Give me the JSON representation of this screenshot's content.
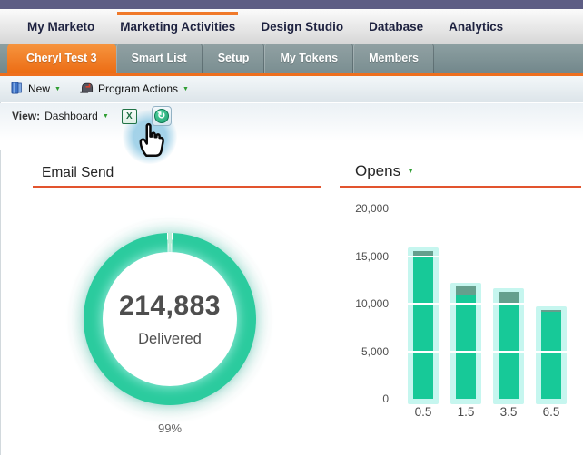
{
  "topnav": {
    "items": [
      {
        "label": "My Marketo",
        "active": false
      },
      {
        "label": "Marketing Activities",
        "active": true
      },
      {
        "label": "Design Studio",
        "active": false
      },
      {
        "label": "Database",
        "active": false
      },
      {
        "label": "Analytics",
        "active": false
      }
    ]
  },
  "tabbar": {
    "tabs": [
      {
        "label": "Cheryl Test 3",
        "active": true
      },
      {
        "label": "Smart List",
        "active": false
      },
      {
        "label": "Setup",
        "active": false
      },
      {
        "label": "My Tokens",
        "active": false
      },
      {
        "label": "Members",
        "active": false
      }
    ]
  },
  "toolbar": {
    "buttons": [
      {
        "label": "New",
        "icon": "binder-icon"
      },
      {
        "label": "Program Actions",
        "icon": "mailbox-icon"
      }
    ]
  },
  "viewbar": {
    "view_label": "View:",
    "view_value": "Dashboard"
  },
  "icons": {
    "dropdown_caret": "▼",
    "refresh_glyph": "↻",
    "excel_x": "X"
  },
  "colors": {
    "topbar_purple": "#5d5d84",
    "accent_orange": "#ee6f1e",
    "nav_active_bar": "#f0792a",
    "tab_slate": "#7d9093",
    "title_underline": "#e2542e",
    "chart_green": "#2bcb9e",
    "bar_halo": "#c6f6ef",
    "bar_cap": "#659f8d",
    "dropdown_caret_green": "#2f9e33"
  },
  "chart_data": [
    {
      "type": "donut",
      "title": "Email Send",
      "center_value": "214,883",
      "center_label": "Delivered",
      "footer_label": "99%",
      "delivered_percent": 99,
      "ring_color": "#2bcb9e",
      "gap_slice_color": "#b9eed6",
      "glow_color": "#aeeee2"
    },
    {
      "type": "bar",
      "title": "Opens",
      "categories": [
        "0.5",
        "1.5",
        "3.5",
        "6.5"
      ],
      "values": [
        15500,
        11800,
        11200,
        9300
      ],
      "green_portion": [
        15000,
        10900,
        10000,
        9100
      ],
      "ylim": [
        0,
        20000
      ],
      "ytick_values": [
        0,
        5000,
        10000,
        15000,
        20000
      ],
      "ytick_labels": [
        "0",
        "5,000",
        "10,000",
        "15,000",
        "20,000"
      ],
      "gridline_values": [
        5000,
        10000,
        15000
      ],
      "bar_color": "#17c998",
      "cap_color": "#659f8d",
      "halo_color": "#c6f6ef",
      "gridline_color": "#ffffff",
      "legend": "none",
      "has_title_dropdown": true
    }
  ]
}
